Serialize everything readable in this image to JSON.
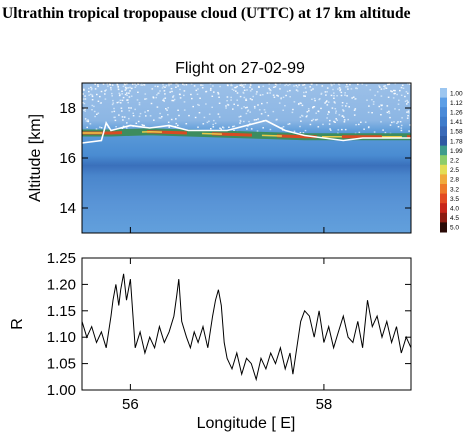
{
  "title": "Ultrathin tropical tropopause cloud (UTTC) at 17 km altitude",
  "chart_data": [
    {
      "type": "heatmap",
      "title": "Flight on 27-02-99",
      "xlabel": "",
      "ylabel": "Altitude [km]",
      "xlim": [
        55.5,
        58.9
      ],
      "ylim": [
        13,
        19
      ],
      "yticks": [
        "14",
        "16",
        "18"
      ],
      "colorbar": {
        "labels": [
          "1.00",
          "1.12",
          "1.26",
          "1.41",
          "1.58",
          "1.78",
          "1.99",
          "2.2",
          "2.5",
          "2.8",
          "3.2",
          "3.5",
          "4.0",
          "4.5",
          "5.0"
        ],
        "colors": [
          "#9cc6f0",
          "#5c9ee6",
          "#4a8ad8",
          "#3f7ccb",
          "#3a6ab8",
          "#2f5aa3",
          "#3f9c8c",
          "#8ccd6a",
          "#e3dd55",
          "#f0aa3c",
          "#ee7a2a",
          "#e34a22",
          "#c8261a",
          "#8c1c12",
          "#2a0a06"
        ]
      },
      "tropopause_line": {
        "name": "",
        "x": [
          55.5,
          55.7,
          55.75,
          55.8,
          56.0,
          56.2,
          56.4,
          56.6,
          56.8,
          57.0,
          57.2,
          57.4,
          57.5,
          57.6,
          57.8,
          58.0,
          58.2,
          58.4,
          58.6,
          58.8,
          58.9
        ],
        "y": [
          16.6,
          16.7,
          17.4,
          17.1,
          17.3,
          17.2,
          17.3,
          17.1,
          17.1,
          17.1,
          17.3,
          17.5,
          17.3,
          17.1,
          16.9,
          16.8,
          16.7,
          16.8,
          16.8,
          16.8,
          16.8
        ]
      },
      "cloud_layer": {
        "x": [
          55.5,
          55.8,
          56.2,
          56.6,
          57.0,
          57.4,
          57.8,
          58.2,
          58.6,
          58.9
        ],
        "y": [
          17.0,
          17.0,
          17.05,
          17.0,
          16.95,
          16.9,
          16.85,
          16.85,
          16.85,
          16.85
        ]
      }
    },
    {
      "type": "line",
      "title": "",
      "xlabel": "Longitude [ E]",
      "ylabel": "R",
      "xlim": [
        55.5,
        58.9
      ],
      "ylim": [
        1.0,
        1.25
      ],
      "xticks": [
        "56",
        "58"
      ],
      "yticks": [
        "1.00",
        "1.05",
        "1.10",
        "1.15",
        "1.20",
        "1.25"
      ],
      "x": [
        55.5,
        55.55,
        55.6,
        55.65,
        55.7,
        55.75,
        55.8,
        55.82,
        55.85,
        55.88,
        55.9,
        55.93,
        55.96,
        56.0,
        56.05,
        56.1,
        56.15,
        56.2,
        56.25,
        56.3,
        56.35,
        56.4,
        56.45,
        56.48,
        56.5,
        56.53,
        56.58,
        56.62,
        56.66,
        56.7,
        56.75,
        56.8,
        56.85,
        56.88,
        56.91,
        56.94,
        56.97,
        57.0,
        57.05,
        57.1,
        57.15,
        57.2,
        57.25,
        57.3,
        57.35,
        57.4,
        57.45,
        57.5,
        57.55,
        57.6,
        57.65,
        57.68,
        57.72,
        57.76,
        57.8,
        57.85,
        57.9,
        57.95,
        58.0,
        58.05,
        58.1,
        58.15,
        58.2,
        58.25,
        58.3,
        58.35,
        58.4,
        58.45,
        58.5,
        58.55,
        58.6,
        58.65,
        58.7,
        58.75,
        58.8,
        58.85,
        58.9
      ],
      "y": [
        1.13,
        1.1,
        1.12,
        1.09,
        1.11,
        1.08,
        1.14,
        1.17,
        1.2,
        1.16,
        1.19,
        1.22,
        1.17,
        1.21,
        1.08,
        1.11,
        1.07,
        1.1,
        1.08,
        1.12,
        1.09,
        1.11,
        1.14,
        1.18,
        1.21,
        1.13,
        1.1,
        1.08,
        1.11,
        1.09,
        1.12,
        1.08,
        1.14,
        1.17,
        1.19,
        1.16,
        1.09,
        1.06,
        1.04,
        1.07,
        1.03,
        1.06,
        1.05,
        1.02,
        1.06,
        1.04,
        1.07,
        1.05,
        1.08,
        1.04,
        1.07,
        1.03,
        1.08,
        1.13,
        1.15,
        1.14,
        1.1,
        1.15,
        1.09,
        1.12,
        1.08,
        1.11,
        1.14,
        1.1,
        1.09,
        1.13,
        1.08,
        1.17,
        1.12,
        1.14,
        1.1,
        1.13,
        1.09,
        1.12,
        1.07,
        1.1,
        1.08
      ]
    }
  ]
}
